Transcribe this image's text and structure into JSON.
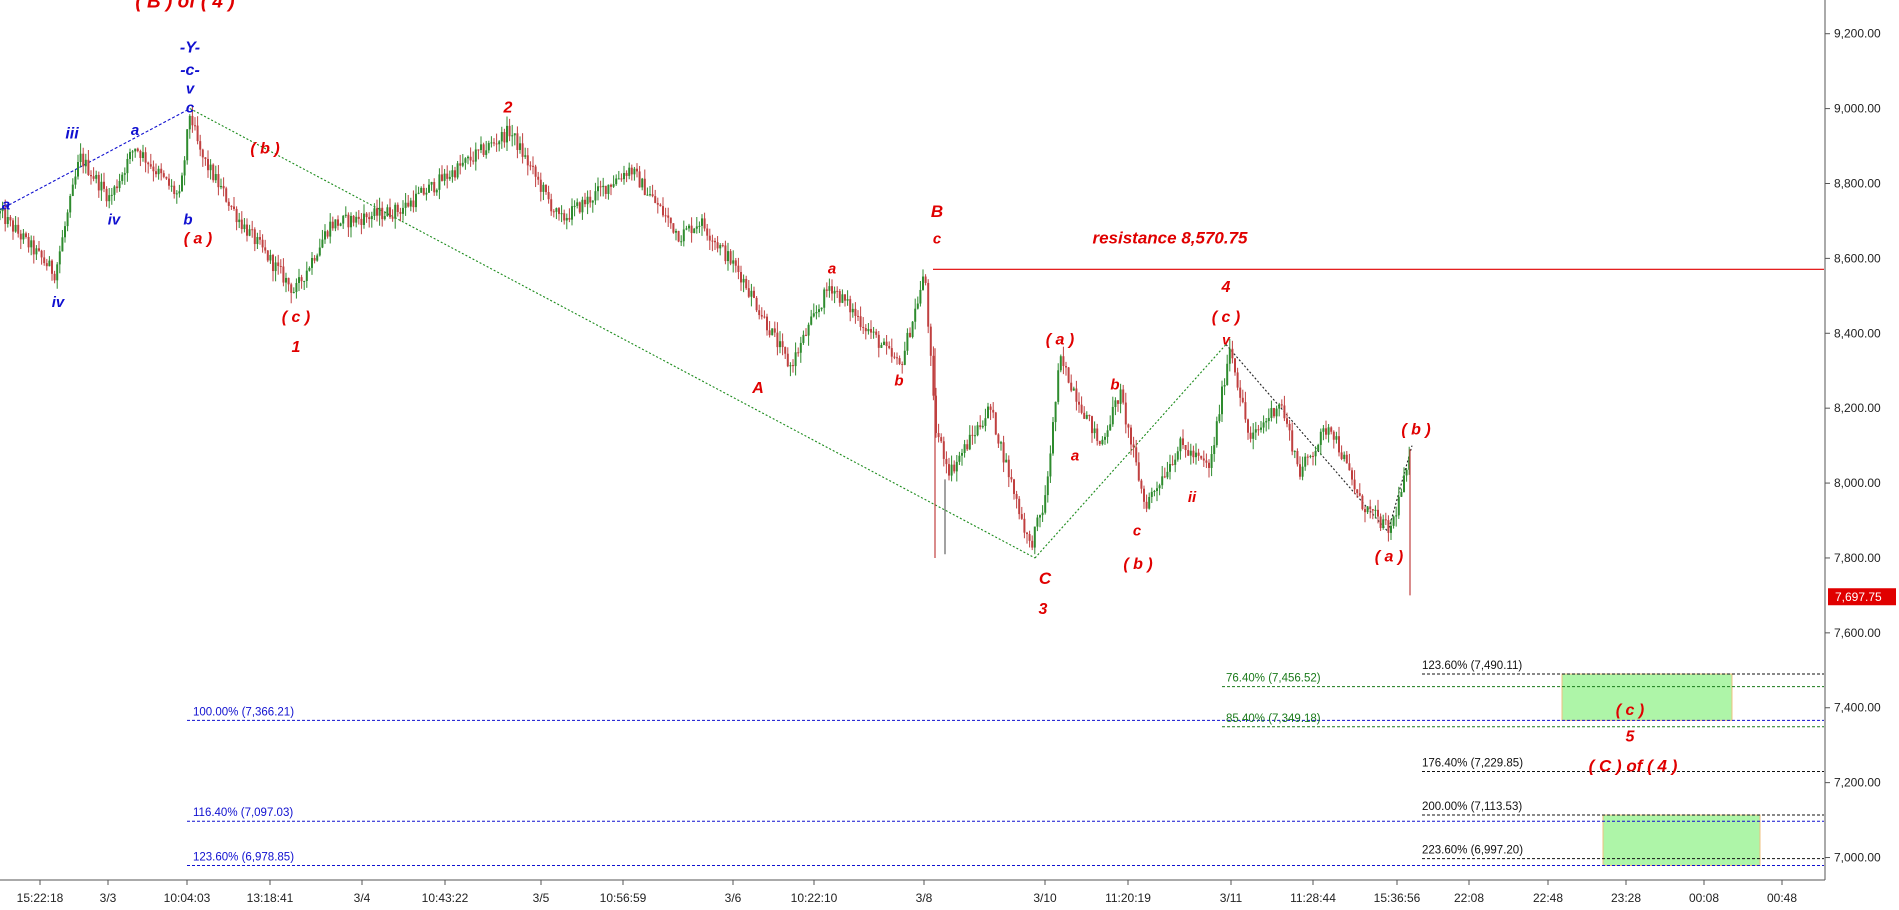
{
  "chart_data": {
    "type": "candlestick",
    "title": "",
    "xlabel": "",
    "ylabel": "",
    "ylim": [
      6940,
      9290
    ],
    "grid": false,
    "y_ticks": [
      "9,200.00",
      "9,000.00",
      "8,800.00",
      "8,600.00",
      "8,400.00",
      "8,200.00",
      "8,000.00",
      "7,800.00",
      "7,600.00",
      "7,400.00",
      "7,200.00",
      "7,000.00"
    ],
    "y_tick_values": [
      9200,
      9000,
      8800,
      8600,
      8400,
      8200,
      8000,
      7800,
      7600,
      7400,
      7200,
      7000
    ],
    "x_ticks": [
      "15:22:18",
      "3/3",
      "10:04:03",
      "13:18:41",
      "3/4",
      "10:43:22",
      "3/5",
      "10:56:59",
      "3/6",
      "10:22:10",
      "3/8",
      "3/10",
      "11:20:19",
      "3/11",
      "11:28:44",
      "15:36:56",
      "22:08",
      "22:48",
      "23:28",
      "00:08",
      "00:48"
    ],
    "x_tick_bars": [
      40,
      108,
      187,
      270,
      362,
      445,
      541,
      623,
      733,
      814,
      924,
      1045,
      1128,
      1231,
      1313,
      1397,
      1469,
      1548,
      1626,
      1704,
      1782
    ],
    "last_price": "7,697.75",
    "last_price_value": 7697.75,
    "resistance": {
      "label": "resistance 8,570.75",
      "value": 8570.75
    },
    "pivots": [
      [
        0,
        8720
      ],
      [
        55,
        8560
      ],
      [
        80,
        8870
      ],
      [
        110,
        8760
      ],
      [
        135,
        8900
      ],
      [
        180,
        8760
      ],
      [
        190,
        8990
      ],
      [
        200,
        8880
      ],
      [
        240,
        8700
      ],
      [
        295,
        8510
      ],
      [
        330,
        8690
      ],
      [
        400,
        8730
      ],
      [
        510,
        8940
      ],
      [
        560,
        8700
      ],
      [
        630,
        8840
      ],
      [
        680,
        8660
      ],
      [
        700,
        8700
      ],
      [
        740,
        8560
      ],
      [
        790,
        8310
      ],
      [
        830,
        8530
      ],
      [
        900,
        8310
      ],
      [
        925,
        8560
      ],
      [
        935,
        8150
      ],
      [
        950,
        8030
      ],
      [
        990,
        8200
      ],
      [
        1030,
        7830
      ],
      [
        1045,
        7950
      ],
      [
        1060,
        8330
      ],
      [
        1100,
        8100
      ],
      [
        1120,
        8240
      ],
      [
        1145,
        7940
      ],
      [
        1180,
        8100
      ],
      [
        1210,
        8040
      ],
      [
        1230,
        8370
      ],
      [
        1250,
        8110
      ],
      [
        1280,
        8220
      ],
      [
        1300,
        8030
      ],
      [
        1330,
        8160
      ],
      [
        1360,
        7950
      ],
      [
        1390,
        7870
      ],
      [
        1410,
        8060
      ]
    ],
    "spikes": [
      {
        "bar": 935,
        "high": 8360,
        "low": 7800
      },
      {
        "bar": 1410,
        "high": 8090,
        "low": 7700
      }
    ],
    "wave_labels": [
      {
        "text": "( B ) of ( 4 )",
        "color": "#e00000",
        "bar": 185,
        "price": 9270,
        "size": 19,
        "bold": true
      },
      {
        "text": "-Y-",
        "color": "#1010d0",
        "bar": 190,
        "price": 9150,
        "size": 16
      },
      {
        "text": "-c-",
        "color": "#1010d0",
        "bar": 190,
        "price": 9090,
        "size": 16
      },
      {
        "text": "v",
        "color": "#1010d0",
        "bar": 190,
        "price": 9040,
        "size": 15
      },
      {
        "text": "c",
        "color": "#1010d0",
        "bar": 190,
        "price": 8990,
        "size": 15
      },
      {
        "text": "a",
        "color": "#1010d0",
        "bar": 6,
        "price": 8730,
        "size": 15
      },
      {
        "text": "iii",
        "color": "#1010d0",
        "bar": 72,
        "price": 8920,
        "size": 16
      },
      {
        "text": "a",
        "color": "#1010d0",
        "bar": 135,
        "price": 8930,
        "size": 15
      },
      {
        "text": "iv",
        "color": "#1010d0",
        "bar": 114,
        "price": 8690,
        "size": 15
      },
      {
        "text": "b",
        "color": "#1010d0",
        "bar": 188,
        "price": 8690,
        "size": 15
      },
      {
        "text": "iv",
        "color": "#1010d0",
        "bar": 58,
        "price": 8470,
        "size": 15
      },
      {
        "text": "( b )",
        "color": "#e00000",
        "bar": 265,
        "price": 8880,
        "size": 16
      },
      {
        "text": "( a )",
        "color": "#e00000",
        "bar": 198,
        "price": 8640,
        "size": 16
      },
      {
        "text": "( c )",
        "color": "#e00000",
        "bar": 296,
        "price": 8430,
        "size": 16
      },
      {
        "text": "1",
        "color": "#e00000",
        "bar": 296,
        "price": 8350,
        "size": 16
      },
      {
        "text": "2",
        "color": "#e00000",
        "bar": 508,
        "price": 8990,
        "size": 16
      },
      {
        "text": "a",
        "color": "#e00000",
        "bar": 832,
        "price": 8560,
        "size": 15
      },
      {
        "text": "A",
        "color": "#e00000",
        "bar": 758,
        "price": 8240,
        "size": 16
      },
      {
        "text": "b",
        "color": "#e00000",
        "bar": 899,
        "price": 8260,
        "size": 15
      },
      {
        "text": "B",
        "color": "#e00000",
        "bar": 937,
        "price": 8710,
        "size": 17
      },
      {
        "text": "c",
        "color": "#e00000",
        "bar": 937,
        "price": 8640,
        "size": 15
      },
      {
        "text": "resistance 8,570.75",
        "color": "#e00000",
        "bar": 1170,
        "price": 8640,
        "size": 17
      },
      {
        "text": "( a )",
        "color": "#e00000",
        "bar": 1060,
        "price": 8370,
        "size": 16
      },
      {
        "text": "b",
        "color": "#e00000",
        "bar": 1115,
        "price": 8250,
        "size": 15
      },
      {
        "text": "a",
        "color": "#e00000",
        "bar": 1075,
        "price": 8060,
        "size": 15
      },
      {
        "text": "ii",
        "color": "#e00000",
        "bar": 1192,
        "price": 7950,
        "size": 15
      },
      {
        "text": "c",
        "color": "#e00000",
        "bar": 1137,
        "price": 7860,
        "size": 15
      },
      {
        "text": "( b )",
        "color": "#e00000",
        "bar": 1138,
        "price": 7770,
        "size": 16
      },
      {
        "text": "C",
        "color": "#e00000",
        "bar": 1045,
        "price": 7730,
        "size": 17
      },
      {
        "text": "3",
        "color": "#e00000",
        "bar": 1043,
        "price": 7650,
        "size": 16
      },
      {
        "text": "4",
        "color": "#e00000",
        "bar": 1226,
        "price": 8510,
        "size": 16
      },
      {
        "text": "( c )",
        "color": "#e00000",
        "bar": 1226,
        "price": 8430,
        "size": 16
      },
      {
        "text": "v",
        "color": "#e00000",
        "bar": 1226,
        "price": 8370,
        "size": 14
      },
      {
        "text": "( b )",
        "color": "#e00000",
        "bar": 1416,
        "price": 8130,
        "size": 16
      },
      {
        "text": "( a )",
        "color": "#e00000",
        "bar": 1389,
        "price": 7790,
        "size": 16
      },
      {
        "text": "( c )",
        "color": "#e00000",
        "bar": 1630,
        "price": 7380,
        "size": 16
      },
      {
        "text": "5",
        "color": "#e00000",
        "bar": 1630,
        "price": 7310,
        "size": 16
      },
      {
        "text": "( C ) of ( 4 )",
        "color": "#e00000",
        "bar": 1633,
        "price": 7230,
        "size": 17
      }
    ],
    "trendlines": [
      {
        "color": "#1010d0",
        "from": [
          0,
          8730
        ],
        "to": [
          190,
          9000
        ],
        "dash": "3,2"
      },
      {
        "color": "#1a8a1a",
        "from": [
          190,
          9000
        ],
        "to": [
          1035,
          7800
        ],
        "dash": "2,2"
      },
      {
        "color": "#1a8a1a",
        "from": [
          1035,
          7800
        ],
        "to": [
          1226,
          8370
        ],
        "dash": "2,2"
      },
      {
        "color": "#222222",
        "from": [
          1226,
          8370
        ],
        "to": [
          1388,
          7870
        ],
        "dash": "2,2"
      },
      {
        "color": "#222222",
        "from": [
          1388,
          7870
        ],
        "to": [
          1412,
          8100
        ],
        "dash": "2,2"
      }
    ],
    "fib_levels": [
      {
        "text": "123.60% (7,490.11)",
        "color": "#111111",
        "value": 7490.11,
        "x0": 1422,
        "x1": 1899,
        "label_bar": 1422
      },
      {
        "text": "76.40% (7,456.52)",
        "color": "#1a7a1a",
        "value": 7456.52,
        "x0": 1222,
        "x1": 1899,
        "label_bar": 1226
      },
      {
        "text": "100.00% (7,366.21)",
        "color": "#1010d0",
        "value": 7366.21,
        "x0": 187,
        "x1": 1899,
        "label_bar": 193
      },
      {
        "text": "85.40% (7,349.18)",
        "color": "#1a7a1a",
        "value": 7349.18,
        "x0": 1222,
        "x1": 1899,
        "label_bar": 1226
      },
      {
        "text": "176.40% (7,229.85)",
        "color": "#111111",
        "value": 7229.85,
        "x0": 1422,
        "x1": 1899,
        "label_bar": 1422
      },
      {
        "text": "200.00% (7,113.53)",
        "color": "#111111",
        "value": 7113.53,
        "x0": 1422,
        "x1": 1899,
        "label_bar": 1422
      },
      {
        "text": "116.40% (7,097.03)",
        "color": "#1010d0",
        "value": 7097.03,
        "x0": 187,
        "x1": 1899,
        "label_bar": 193
      },
      {
        "text": "223.60% (6,997.20)",
        "color": "#111111",
        "value": 6997.2,
        "x0": 1422,
        "x1": 1899,
        "label_bar": 1422
      },
      {
        "text": "123.60% (6,978.85)",
        "color": "#1010d0",
        "value": 6978.85,
        "x0": 187,
        "x1": 1899,
        "label_bar": 193
      }
    ],
    "target_zones": [
      {
        "x0": 1562,
        "x1": 1732,
        "top": 7490.11,
        "bottom": 7366.21
      },
      {
        "x0": 1603,
        "x1": 1760,
        "top": 7113.53,
        "bottom": 6978.85
      }
    ]
  }
}
